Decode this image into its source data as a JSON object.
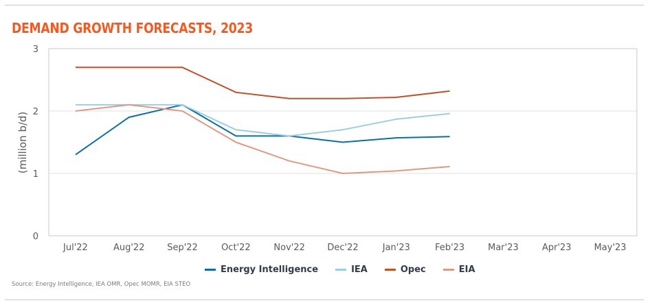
{
  "title": "DEMAND GROWTH FORECASTS, 2023",
  "source": "Source: Energy Intelligence, IEA OMR, Opec MOMR, EIA STEO",
  "colors": {
    "title": "#f25a22",
    "energy_intelligence": "#0a6fa0",
    "iea": "#9ccde0",
    "opec": "#c0502a",
    "eia": "#dc9a84",
    "grid": "#e0e0e0",
    "axis": "#c8c8c8"
  },
  "chart_data": {
    "type": "line",
    "title": "DEMAND GROWTH FORECASTS, 2023",
    "xlabel": "",
    "ylabel": "(million b/d)",
    "ylim": [
      0,
      3
    ],
    "yticks": [
      0,
      1,
      2,
      3
    ],
    "grid": true,
    "legend_position": "bottom-center",
    "categories": [
      "Jul'22",
      "Aug'22",
      "Sep'22",
      "Oct'22",
      "Nov'22",
      "Dec'22",
      "Jan'23",
      "Feb'23",
      "Mar'23",
      "Apr'23",
      "May'23"
    ],
    "series": [
      {
        "name": "Energy Intelligence",
        "key": "energy_intelligence",
        "values": [
          1.3,
          1.9,
          2.1,
          1.6,
          1.6,
          1.5,
          1.57,
          1.59,
          null,
          null,
          null
        ]
      },
      {
        "name": "IEA",
        "key": "iea",
        "values": [
          2.1,
          2.1,
          2.1,
          1.7,
          1.6,
          1.7,
          1.87,
          1.96,
          null,
          null,
          null
        ]
      },
      {
        "name": "Opec",
        "key": "opec",
        "values": [
          2.7,
          2.7,
          2.7,
          2.3,
          2.2,
          2.2,
          2.22,
          2.32,
          null,
          null,
          null
        ]
      },
      {
        "name": "EIA",
        "key": "eia",
        "values": [
          2.0,
          2.1,
          2.0,
          1.5,
          1.2,
          1.0,
          1.04,
          1.11,
          null,
          null,
          null
        ]
      }
    ]
  }
}
